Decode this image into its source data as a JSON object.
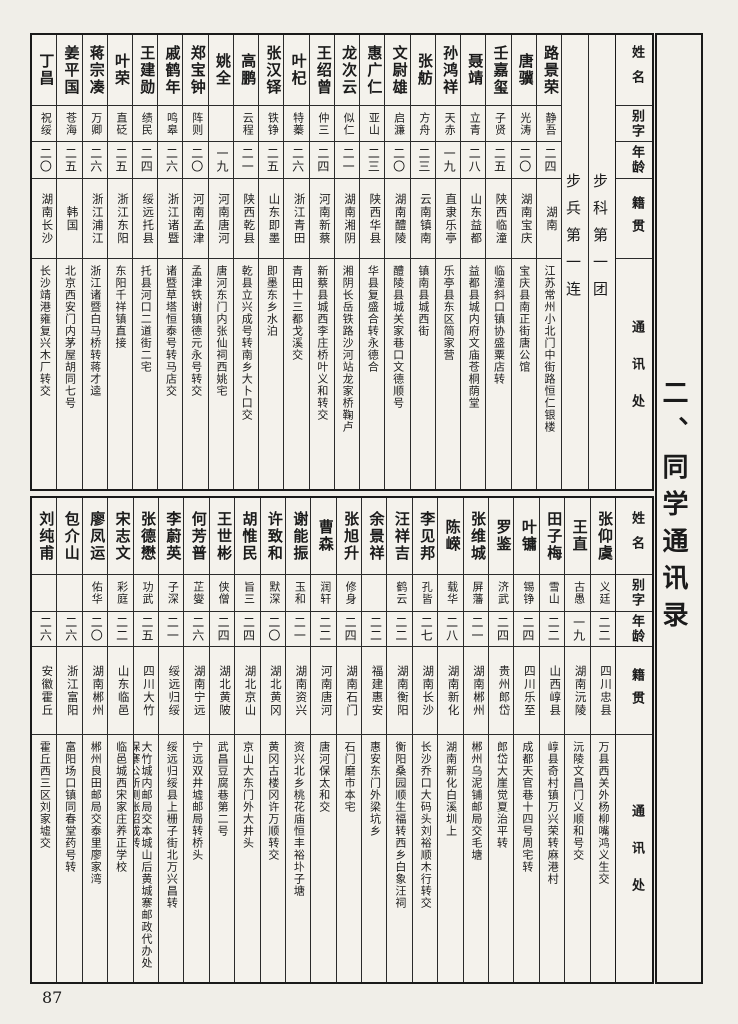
{
  "page": {
    "number": "87",
    "title": "二、同学通讯录"
  },
  "headers": {
    "name": "姓名",
    "alias": "别字",
    "age": "年龄",
    "native": "籍贯",
    "address": "通讯处"
  },
  "colors": {
    "ink": "#1b1b1b",
    "paper": "#f0eee8",
    "border": "#1a1a1a"
  },
  "sections": [
    {
      "groups": [
        "步科第一团",
        "步兵第一连"
      ],
      "people": [
        {
          "name": "路景荣",
          "alias": "静吾",
          "age": "二四",
          "native": "湖南",
          "address": "江苏常州小北门中街路恒仁银楼"
        },
        {
          "name": "唐骥",
          "alias": "光涛",
          "age": "二〇",
          "native": "湖南宝庆",
          "address": "宝庆县南正街唐公馆"
        },
        {
          "name": "壬嘉玺",
          "alias": "子贤",
          "age": "二五",
          "native": "陕西临潼",
          "address": "临潼斜口镇协盛粟店转"
        },
        {
          "name": "聂靖",
          "alias": "立青",
          "age": "二八",
          "native": "山东益都",
          "address": "益都县城内府文庙苍桐荫堂"
        },
        {
          "name": "孙鸿祥",
          "alias": "天赤",
          "age": "一九",
          "native": "直隶乐亭",
          "address": "乐亭县东区简家营"
        },
        {
          "name": "张舫",
          "alias": "方舟",
          "age": "二三",
          "native": "云南镇南",
          "address": "镇南县城西街"
        },
        {
          "name": "文尉雄",
          "alias": "启濂",
          "age": "二〇",
          "native": "湖南醴陵",
          "address": "醴陵县城关家巷口文德顺号"
        },
        {
          "name": "惠广仁",
          "alias": "亚山",
          "age": "二三",
          "native": "陕西华县",
          "address": "华县复盛合转永德合"
        },
        {
          "name": "龙次云",
          "alias": "似仁",
          "age": "二一",
          "native": "湖南湘阴",
          "address": "湘阴长岳铁路沙河站龙家桥鞠卢"
        },
        {
          "name": "王绍曾",
          "alias": "仲三",
          "age": "二四",
          "native": "河南新蔡",
          "address": "新蔡县城西李庄桥叶义和转交"
        },
        {
          "name": "叶杞",
          "alias": "特蓁",
          "age": "二六",
          "native": "浙江青田",
          "address": "青田十三都戈溪交"
        },
        {
          "name": "张汉铎",
          "alias": "铁铮",
          "age": "二五",
          "native": "山东即墨",
          "address": "即墨东乡水泊"
        },
        {
          "name": "高鹏",
          "alias": "云程",
          "age": "二一",
          "native": "陕西乾县",
          "address": "乾县立兴成号转南乡大卜口交"
        },
        {
          "name": "姚全",
          "alias": "",
          "age": "一九",
          "native": "河南唐河",
          "address": "唐河东门内张仙祠西姚宅"
        },
        {
          "name": "郑宝钟",
          "alias": "阵则",
          "age": "二〇",
          "native": "河南孟津",
          "address": "孟津铁谢镇德元永号转交"
        },
        {
          "name": "戚鹤年",
          "alias": "鸣皋",
          "age": "二六",
          "native": "浙江诸暨",
          "address": "诸暨草塔恒泰号转马店交"
        },
        {
          "name": "王建勋",
          "alias": "绩民",
          "age": "二四",
          "native": "绥远托县",
          "address": "托县河口二道街二宅"
        },
        {
          "name": "叶荣",
          "alias": "直砭",
          "age": "二五",
          "native": "浙江东阳",
          "address": "东阳千祥镇直接"
        },
        {
          "name": "蒋宗凑",
          "alias": "万卿",
          "age": "二六",
          "native": "浙江浦江",
          "address": "浙江诸暨白马桥转蒋才逵"
        },
        {
          "name": "姜平国",
          "alias": "苍海",
          "age": "二五",
          "native": "韩国",
          "address": "北京西安门内茅屋胡同七号"
        },
        {
          "name": "丁昌",
          "alias": "祝绥",
          "age": "二〇",
          "native": "湖南长沙",
          "address": "长沙靖港雍复兴木厂转交"
        }
      ]
    },
    {
      "groups": [],
      "people": [
        {
          "name": "张仰虞",
          "alias": "义廷",
          "age": "二二",
          "native": "四川忠县",
          "address": "万县西关外杨柳嘴鸿义生交"
        },
        {
          "name": "王直",
          "alias": "古愚",
          "age": "一九",
          "native": "湖南沅陵",
          "address": "沅陵文昌门义顺和号交"
        },
        {
          "name": "田子梅",
          "alias": "雪山",
          "age": "二二",
          "native": "山西崞县",
          "address": "崞县奇村镇万兴荣转麻港村"
        },
        {
          "name": "叶镛",
          "alias": "锡铮",
          "age": "二四",
          "native": "四川乐至",
          "address": "成都天官巷十四号周宅转"
        },
        {
          "name": "罗鉴",
          "alias": "济武",
          "age": "二四",
          "native": "贵州郎岱",
          "address": "郎岱大崖觉夏治平转"
        },
        {
          "name": "张维城",
          "alias": "屏藩",
          "age": "二一",
          "native": "湖南郴州",
          "address": "郴州乌泥铺邮局交毛塘"
        },
        {
          "name": "陈嵘",
          "alias": "载华",
          "age": "二八",
          "native": "湖南新化",
          "address": "湖南新化白溪圳上"
        },
        {
          "name": "李见邦",
          "alias": "孔皆",
          "age": "二七",
          "native": "湖南长沙",
          "address": "长沙乔口大码头刘裕顺木行转交"
        },
        {
          "name": "汪祥吉",
          "alias": "鹤云",
          "age": "二二",
          "native": "湖南衡阳",
          "address": "衡阳桑园顺生福转西乡白象汪祠"
        },
        {
          "name": "余景祥",
          "alias": "",
          "age": "二二",
          "native": "福建惠安",
          "address": "惠安东门外梁坑乡"
        },
        {
          "name": "张旭升",
          "alias": "修身",
          "age": "二四",
          "native": "湖南石门",
          "address": "石门磨市本宅"
        },
        {
          "name": "曹森",
          "alias": "润轩",
          "age": "二二",
          "native": "河南唐河",
          "address": "唐河保太和交"
        },
        {
          "name": "谢能振",
          "alias": "玉和",
          "age": "二一",
          "native": "湖南资兴",
          "address": "资兴北乡桃花庙恒丰裕圤子塘"
        },
        {
          "name": "许致和",
          "alias": "默深",
          "age": "二〇",
          "native": "湖北黄冈",
          "address": "黄冈古楼冈许万顺转交"
        },
        {
          "name": "胡惟民",
          "alias": "旨三",
          "age": "二四",
          "native": "湖北京山",
          "address": "京山大东门外大井头"
        },
        {
          "name": "王世彬",
          "alias": "侠僧",
          "age": "二四",
          "native": "湖北黄陂",
          "address": "武昌豆腐巷第二号"
        },
        {
          "name": "何芳普",
          "alias": "芷燮",
          "age": "二六",
          "native": "湖南宁远",
          "address": "宁远双井墟邮局转桥头"
        },
        {
          "name": "李蔚英",
          "alias": "子深",
          "age": "二一",
          "native": "绥远归绥",
          "address": "绥远归绥县上栅子街北万兴昌转"
        },
        {
          "name": "张德懋",
          "alias": "功武",
          "age": "二五",
          "native": "四川大竹",
          "address": "大竹城内邮局交本城山后黄城寨邮政代办处保寨公所侧张绍成转"
        },
        {
          "name": "宋志文",
          "alias": "彩庭",
          "age": "二二",
          "native": "山东临邑",
          "address": "临邑城西宋家庄养正学校"
        },
        {
          "name": "廖凤运",
          "alias": "佑华",
          "age": "二〇",
          "native": "湖南郴州",
          "address": "郴州良田邮局交泰里廖家湾"
        },
        {
          "name": "包介山",
          "alias": "",
          "age": "二六",
          "native": "浙江富阳",
          "address": "富阳场口镇同春堂药号转"
        },
        {
          "name": "刘纯甫",
          "alias": "",
          "age": "二六",
          "native": "安徽霍丘",
          "address": "霍丘西三区刘家墟交"
        }
      ]
    }
  ]
}
